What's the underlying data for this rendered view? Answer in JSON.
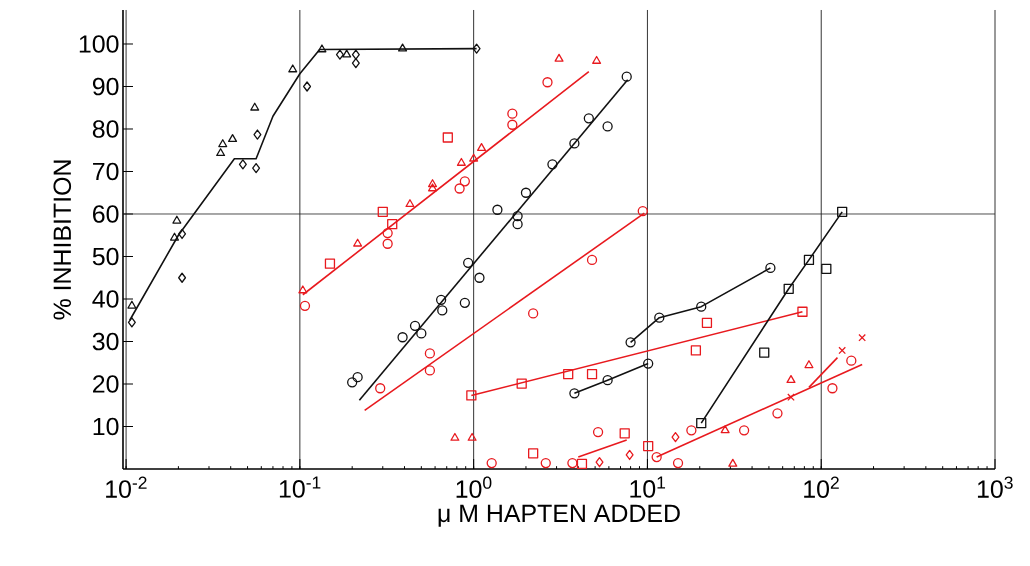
{
  "chart_data": {
    "type": "scatter",
    "xlabel": "μ M HAPTEN ADDED",
    "ylabel": "% INHIBITION",
    "log": "x",
    "grid": "x",
    "xlim": [
      0.0096,
      1000
    ],
    "ylim": [
      0,
      108
    ],
    "xticks": [
      {
        "value": 0.01,
        "label": "10$^{-2}$"
      },
      {
        "value": 0.1,
        "label": "10$^{-1}$"
      },
      {
        "value": 1,
        "label": "10$^{0}$"
      },
      {
        "value": 10,
        "label": "10$^{1}$"
      },
      {
        "value": 100,
        "label": "10$^{2}$"
      },
      {
        "value": 1000,
        "label": "10$^{3}$"
      }
    ],
    "yticks": [
      10,
      20,
      30,
      40,
      50,
      60,
      70,
      80,
      90,
      100
    ],
    "ref_lines": [
      {
        "axis": "y",
        "value": 60,
        "color": "#222222"
      }
    ],
    "series": [
      {
        "type": "scatter",
        "marker": "triangle",
        "color": "#111111",
        "x": [
          0.0108,
          0.0196,
          0.019,
          0.036,
          0.041,
          0.035,
          0.055,
          0.091,
          0.134,
          0.186,
          0.39
        ],
        "values": [
          38.4,
          58.4,
          54.4,
          76.4,
          77.6,
          74.3,
          85,
          94,
          98.7,
          97.5,
          98.9
        ]
      },
      {
        "marker": "diamond",
        "color": "#111111",
        "x": [
          0.0108,
          0.021,
          0.021,
          0.047,
          0.056,
          0.057,
          0.11,
          0.17,
          0.21,
          0.21,
          1.04
        ],
        "values": [
          34.5,
          45,
          55.3,
          71.7,
          70.8,
          78.7,
          90,
          97.5,
          97.5,
          95.5,
          98.9
        ]
      },
      {
        "type": "line",
        "marker": "none",
        "color": "#111111",
        "x": [
          0.0105,
          0.02,
          0.042,
          0.056,
          0.07,
          0.1,
          0.13,
          1.04
        ],
        "values": [
          35,
          55,
          73,
          73,
          83,
          93,
          98.7,
          98.9
        ]
      },
      {
        "type": "scatter",
        "marker": "triangle",
        "color": "#e8191e",
        "x": [
          0.104,
          0.215,
          0.43,
          0.58,
          0.85,
          1.0,
          1.11,
          3.1,
          5.1
        ],
        "values": [
          42,
          53,
          62.3,
          66,
          72,
          73,
          75.5,
          96.5,
          96
        ]
      },
      {
        "type": "scatter",
        "marker": "triangle",
        "color": "#e8191e",
        "x": [
          0.58,
          0.78,
          0.98
        ],
        "values": [
          67,
          7.3,
          7.3
        ]
      },
      {
        "type": "scatter",
        "marker": "square",
        "color": "#e8191e",
        "x": [
          0.149,
          0.3,
          0.34,
          0.71
        ],
        "values": [
          48.3,
          60.5,
          57.6,
          78
        ]
      },
      {
        "type": "scatter",
        "marker": "circle",
        "color": "#e8191e",
        "x": [
          0.107,
          0.32,
          0.32,
          0.83,
          0.89,
          1.67,
          1.67,
          2.66
        ],
        "values": [
          38.4,
          55.5,
          53,
          66,
          67.7,
          81,
          83.6,
          91
        ]
      },
      {
        "type": "line",
        "marker": "none",
        "color": "#e8191e",
        "x": [
          0.104,
          4.6
        ],
        "values": [
          41,
          93.5
        ]
      },
      {
        "type": "scatter",
        "marker": "circle",
        "color": "#111111",
        "x": [
          0.2,
          0.215,
          0.39,
          0.46,
          0.5,
          0.66,
          0.65,
          0.89,
          0.93,
          1.08,
          1.37,
          1.79,
          1.79,
          2.0,
          2.84,
          3.8,
          4.6,
          5.9,
          7.6
        ],
        "values": [
          20.4,
          21.6,
          31,
          33.7,
          31.9,
          37.3,
          39.8,
          39.1,
          48.5,
          45,
          61,
          59.5,
          57.6,
          65,
          71.7,
          76.6,
          82.5,
          80.6,
          92.3
        ]
      },
      {
        "type": "line",
        "marker": "none",
        "color": "#111111",
        "x": [
          0.22,
          7.7
        ],
        "values": [
          16.2,
          91.6
        ]
      },
      {
        "type": "scatter",
        "marker": "circle",
        "color": "#e8191e",
        "x": [
          0.29,
          0.56,
          0.56,
          2.2,
          4.8,
          9.4
        ],
        "values": [
          19,
          23.2,
          27.2,
          36.6,
          49.2,
          60.7
        ]
      },
      {
        "type": "line",
        "marker": "none",
        "color": "#e8191e",
        "x": [
          0.236,
          9.6
        ],
        "values": [
          13.8,
          60.2
        ]
      },
      {
        "type": "scatter",
        "marker": "square",
        "color": "#e8191e",
        "x": [
          0.97,
          1.89,
          3.5,
          4.8,
          22,
          19,
          78
        ],
        "values": [
          17.3,
          20.1,
          22.3,
          22.3,
          34.4,
          27.9,
          37
        ]
      },
      {
        "type": "line",
        "marker": "none",
        "color": "#e8191e",
        "x": [
          0.97,
          78
        ],
        "values": [
          17.3,
          37
        ]
      },
      {
        "type": "line",
        "marker": "circle",
        "color": "#111111",
        "x": [
          3.8,
          5.9,
          10.1
        ],
        "values": [
          17.8,
          20.9,
          24.8
        ]
      },
      {
        "type": "line",
        "marker": "circle",
        "color": "#111111",
        "x": [
          8.0,
          11.7,
          20.4,
          51
        ],
        "values": [
          29.8,
          35.6,
          38.2,
          47.3
        ]
      },
      {
        "type": "line",
        "marker": "square",
        "color": "#111111",
        "x": [
          20.4,
          65,
          85,
          132
        ],
        "values": [
          10.8,
          42.4,
          49.2,
          60.5
        ]
      },
      {
        "type": "scatter",
        "marker": "square",
        "color": "#111111",
        "x": [
          47,
          107
        ],
        "values": [
          27.4,
          47.1
        ]
      },
      {
        "type": "scatter",
        "marker": "circle",
        "color": "#e8191e",
        "x": [
          1.27,
          2.6,
          3.7,
          11.3
        ],
        "values": [
          1.4,
          1.4,
          1.4,
          2.8
        ]
      },
      {
        "type": "scatter",
        "marker": "square",
        "color": "#e8191e",
        "x": [
          2.2,
          4.2,
          7.4,
          10.1
        ],
        "values": [
          3.7,
          1.2,
          8.4,
          5.4
        ]
      },
      {
        "type": "scatter",
        "marker": "circle",
        "color": "#e8191e",
        "x": [
          5.2,
          15,
          17.9,
          36
        ],
        "values": [
          8.7,
          1.4,
          9.1,
          9.1
        ]
      },
      {
        "type": "scatter",
        "marker": "diamond",
        "color": "#e8191e",
        "x": [
          5.3,
          7.9,
          14.5
        ],
        "values": [
          1.6,
          3.3,
          7.5
        ]
      },
      {
        "type": "scatter",
        "marker": "triangle",
        "color": "#e8191e",
        "x": [
          28,
          31,
          67,
          85
        ],
        "values": [
          9.1,
          1.2,
          20.9,
          24.4
        ]
      },
      {
        "type": "scatter",
        "marker": "circle",
        "color": "#e8191e",
        "x": [
          56,
          116,
          149
        ],
        "values": [
          13.1,
          19,
          25.5
        ]
      },
      {
        "type": "scatter",
        "marker": "cross",
        "color": "#e8191e",
        "x": [
          67,
          132,
          172
        ],
        "values": [
          16.9,
          27.9,
          30.9
        ]
      },
      {
        "type": "line",
        "marker": "none",
        "color": "#e8191e",
        "x": [
          4.0,
          7.6
        ],
        "values": [
          2.8,
          6.8
        ]
      },
      {
        "type": "line",
        "marker": "none",
        "color": "#e8191e",
        "x": [
          11.3,
          172
        ],
        "values": [
          2.8,
          24.6
        ]
      },
      {
        "type": "line",
        "marker": "none",
        "color": "#e8191e",
        "x": [
          85,
          124
        ],
        "values": [
          19.2,
          26.2
        ]
      }
    ]
  }
}
